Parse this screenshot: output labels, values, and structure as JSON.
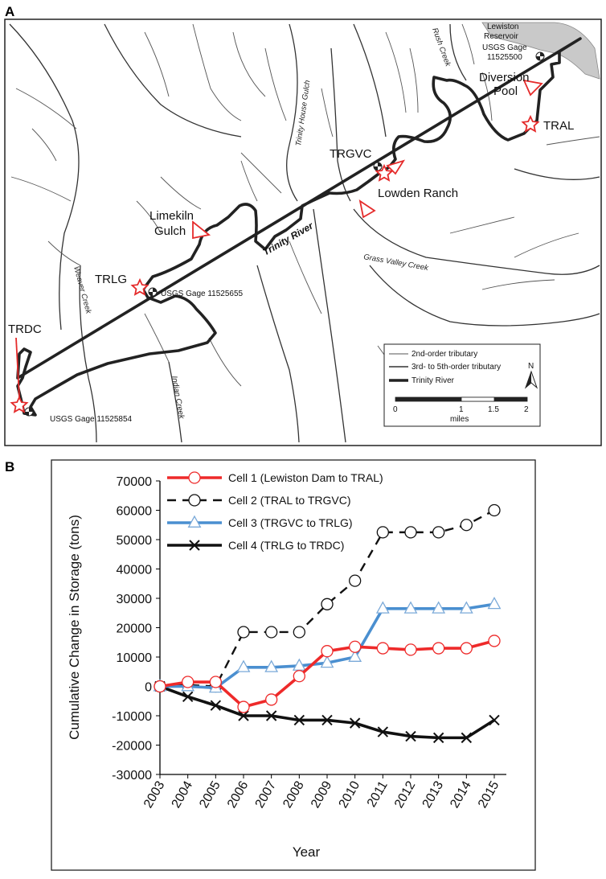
{
  "panel_a": {
    "letter": "A",
    "sites": {
      "tral": "TRAL",
      "trgvc": "TRGVC",
      "trlg": "TRLG",
      "trdc": "TRDC",
      "diversion_pool_line1": "Diversion",
      "diversion_pool_line2": "Pool",
      "lowden_ranch": "Lowden Ranch",
      "limekiln_line1": "Limekiln",
      "limekiln_line2": "Gulch",
      "lewiston_line1": "Lewiston",
      "lewiston_line2": "Reservoir"
    },
    "gages": {
      "g1_line1": "USGS Gage",
      "g1_line2": "11525500",
      "g2": "USGS Gage 11525655",
      "g3": "USGS Gage 11525854"
    },
    "creeks": {
      "rush": "Rush Creek",
      "trinity_house": "Trinity House Gulch",
      "grass_valley": "Grass Valley Creek",
      "weaver": "Weaver Creek",
      "indian": "Indian Creek",
      "trinity_river": "Trinity River"
    },
    "legend": {
      "trib2": "2nd-order tributary",
      "trib3": "3rd- to 5th-order tributary",
      "river": "Trinity River",
      "north": "N",
      "scale_ticks": [
        "0",
        "1",
        "1.5",
        "2"
      ],
      "scale_unit": "miles"
    },
    "colors": {
      "marker": "#e52b2b",
      "reservoir": "#c9c9c9"
    }
  },
  "panel_b": {
    "letter": "B",
    "chart_data": {
      "type": "line",
      "title": "",
      "xlabel": "Year",
      "ylabel": "Cumulative Change in Storage (tons)",
      "ylim": [
        -30000,
        70000
      ],
      "yticks": [
        "70000",
        "60000",
        "50000",
        "40000",
        "30000",
        "20000",
        "10000",
        "0",
        "-10000",
        "-20000",
        "-30000"
      ],
      "categories": [
        "2003",
        "2004",
        "2005",
        "2006",
        "2007",
        "2008",
        "2009",
        "2010",
        "2011",
        "2012",
        "2013",
        "2014",
        "2015"
      ],
      "legend_position": "top-left",
      "grid": false,
      "series": [
        {
          "name": "Cell 1 (Lewiston Dam to TRAL)",
          "color": "#ee2a2a",
          "marker": "circle",
          "line": "solid",
          "values": [
            0,
            1500,
            1500,
            -7000,
            -4500,
            3500,
            12000,
            13500,
            13000,
            12500,
            13000,
            13000,
            15500
          ]
        },
        {
          "name": "Cell 2 (TRAL to TRGVC)",
          "color": "#111111",
          "marker": "circle",
          "line": "dashed",
          "values": [
            0,
            500,
            0,
            18500,
            18500,
            18500,
            28000,
            36000,
            52500,
            52500,
            52500,
            55000,
            60000
          ]
        },
        {
          "name": "Cell 3 (TRGVC to TRLG)",
          "color": "#4a8fd0",
          "marker": "triangle",
          "line": "solid",
          "values": [
            0,
            0,
            -500,
            6500,
            6500,
            7000,
            8000,
            10000,
            26500,
            26500,
            26500,
            26500,
            28000
          ]
        },
        {
          "name": "Cell 4 (TRLG to TRDC)",
          "color": "#111111",
          "marker": "x",
          "line": "solid",
          "values": [
            0,
            -3500,
            -6500,
            -10000,
            -10000,
            -11500,
            -11500,
            -12500,
            -15500,
            -17000,
            -17500,
            -17500,
            -11500
          ]
        }
      ]
    }
  }
}
